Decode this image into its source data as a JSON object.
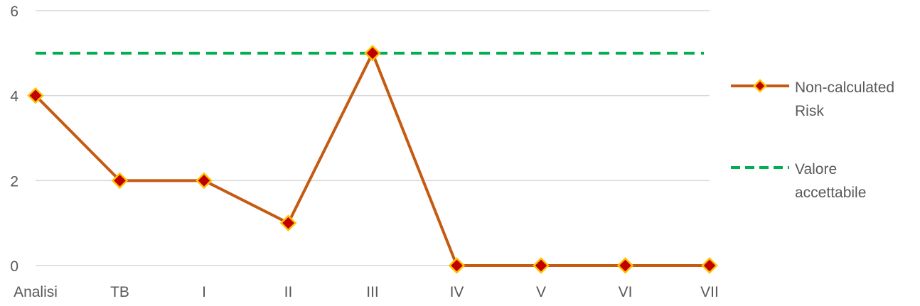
{
  "chart_data": {
    "type": "line",
    "categories": [
      "Analisi",
      "TB",
      "I",
      "II",
      "III",
      "IV",
      "V",
      "VI",
      "VII"
    ],
    "series": [
      {
        "name": "Non-calculated Risk",
        "name_lines": [
          "Non-calculated",
          "Risk"
        ],
        "values": [
          4,
          2,
          2,
          1,
          5,
          0,
          0,
          0,
          0
        ],
        "color": "#C55A11",
        "marker": "diamond",
        "marker_fill": "#C00000",
        "marker_stroke": "#FFC000"
      },
      {
        "name": "Valore accettabile",
        "name_lines": [
          "Valore",
          "accettabile"
        ],
        "values": [
          5,
          5,
          5,
          5,
          5,
          5,
          5,
          5,
          5
        ],
        "color": "#00B050",
        "dashed": true
      }
    ],
    "ylim": [
      0,
      6
    ],
    "yticks": [
      0,
      2,
      4,
      6
    ],
    "grid": true,
    "legend_position": "right",
    "title": "",
    "xlabel": "",
    "ylabel": ""
  }
}
